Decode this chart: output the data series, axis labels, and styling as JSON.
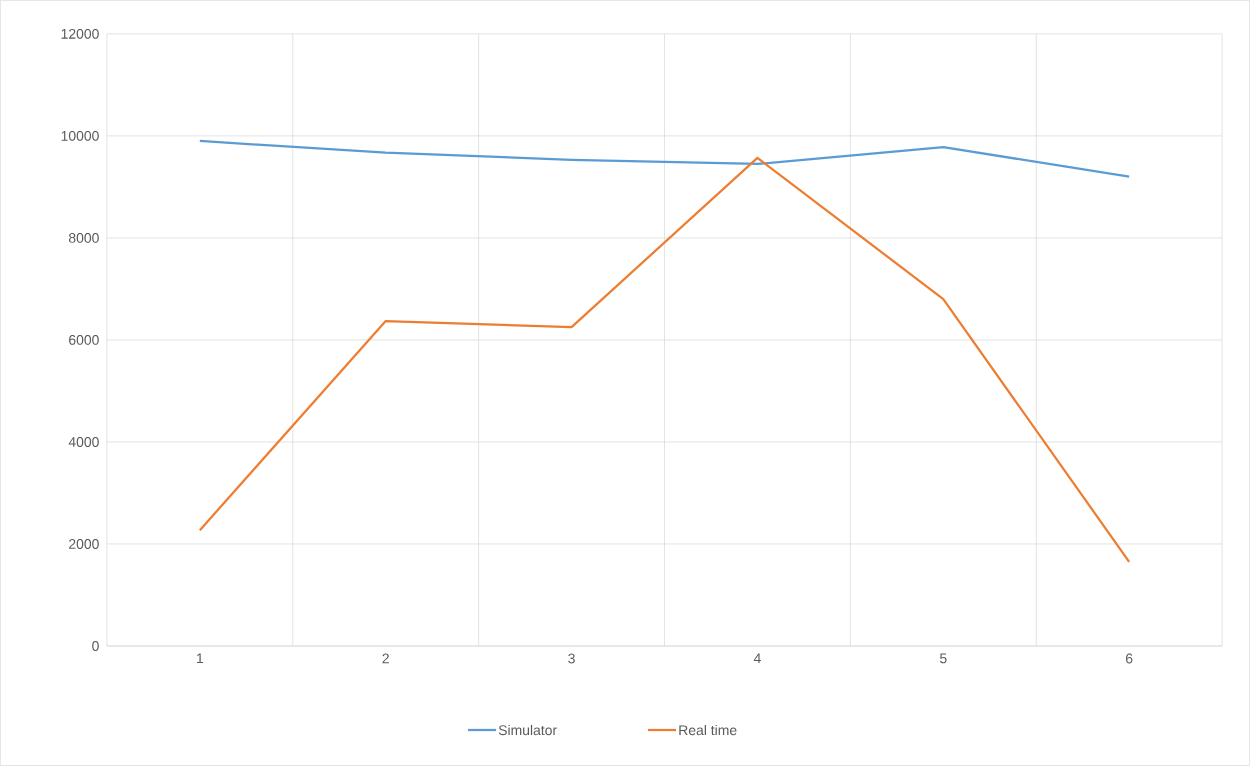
{
  "chart_data": {
    "type": "line",
    "categories": [
      "1",
      "2",
      "3",
      "4",
      "5",
      "6"
    ],
    "series": [
      {
        "name": "Simulator",
        "color": "#5b9bd5",
        "values": [
          9900,
          9670,
          9530,
          9450,
          9780,
          9200
        ]
      },
      {
        "name": "Real time",
        "color": "#ed7d31",
        "values": [
          2270,
          6370,
          6250,
          9570,
          6800,
          1650
        ]
      }
    ],
    "ylim": [
      0,
      12000
    ],
    "yticks": [
      0,
      2000,
      4000,
      6000,
      8000,
      10000,
      12000
    ],
    "grid": true,
    "legend": "bottom",
    "marker": "none",
    "line_style": "solid"
  }
}
